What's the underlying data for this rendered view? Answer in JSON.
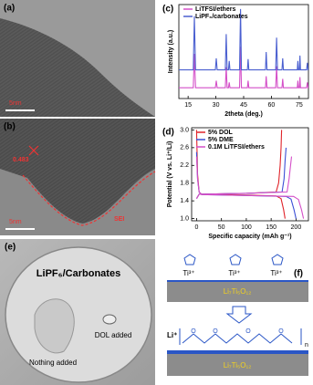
{
  "chart_data": [
    {
      "type": "line",
      "label": "(c)",
      "ylabel": "Intensity (a.u.)",
      "xlabel": "2theta (deg.)",
      "x": [
        10,
        17.8,
        18.4,
        19.0,
        29.7,
        30.2,
        30.7,
        35.1,
        35.6,
        36.1,
        36.8,
        37.2,
        37.6,
        42.8,
        43.3,
        43.8,
        47.0,
        47.4,
        47.8,
        56.8,
        57.2,
        57.6,
        62.3,
        62.8,
        63.3,
        65.7,
        66.1,
        66.5,
        74.0,
        74.3,
        74.6,
        75.1,
        75.4,
        75.7,
        79.0,
        79.4,
        79.8,
        80
      ],
      "series": [
        {
          "name": "LiTFSI/ethers",
          "color": "#d44fc8",
          "values": [
            0.12,
            0.12,
            0.5,
            0.12,
            0.12,
            0.2,
            0.12,
            0.12,
            0.35,
            0.12,
            0.12,
            0.18,
            0.12,
            0.12,
            0.58,
            0.12,
            0.12,
            0.2,
            0.12,
            0.12,
            0.25,
            0.12,
            0.12,
            0.36,
            0.12,
            0.12,
            0.22,
            0.12,
            0.12,
            0.2,
            0.12,
            0.12,
            0.24,
            0.12,
            0.12,
            0.18,
            0.12,
            0.12
          ]
        },
        {
          "name": "LiPF₆/carbonates",
          "color": "#4a5fd0",
          "values": [
            0.32,
            0.32,
            0.92,
            0.32,
            0.32,
            0.45,
            0.32,
            0.32,
            0.72,
            0.32,
            0.32,
            0.42,
            0.32,
            0.32,
            1.0,
            0.32,
            0.32,
            0.44,
            0.32,
            0.32,
            0.52,
            0.32,
            0.32,
            0.68,
            0.32,
            0.32,
            0.45,
            0.32,
            0.32,
            0.42,
            0.32,
            0.32,
            0.48,
            0.32,
            0.32,
            0.4,
            0.32,
            0.32
          ]
        }
      ],
      "xlim": [
        10,
        80
      ],
      "ylim": [
        0,
        1.05
      ],
      "xticks": [
        15,
        30,
        45,
        60,
        75
      ],
      "grid": false,
      "legend": "top-left"
    },
    {
      "type": "line",
      "label": "(d)",
      "ylabel": "Potential (V vs. Li⁺/Li)",
      "xlabel": "Specific capacity (mAh g⁻¹)",
      "series": [
        {
          "name": "5% DOL",
          "color": "#e0242a",
          "x": [
            0,
            2,
            5,
            10,
            100,
            160,
            170,
            175,
            178,
            null,
            0,
            5,
            100,
            160,
            165,
            168,
            170,
            171
          ],
          "values": [
            3.0,
            2.0,
            1.6,
            1.55,
            1.53,
            1.51,
            1.45,
            1.2,
            1.0,
            null,
            1.45,
            1.55,
            1.57,
            1.6,
            1.8,
            2.2,
            2.6,
            3.0
          ]
        },
        {
          "name": "5% DME",
          "color": "#3b4fd6",
          "x": [
            0,
            2,
            5,
            10,
            100,
            180,
            190,
            196,
            200,
            null,
            0,
            5,
            100,
            172,
            176,
            178,
            180
          ],
          "values": [
            2.5,
            1.9,
            1.6,
            1.54,
            1.52,
            1.5,
            1.44,
            1.2,
            1.0,
            null,
            1.45,
            1.55,
            1.57,
            1.6,
            1.9,
            2.3,
            2.6
          ]
        },
        {
          "name": "0.1M LiTFSI/ethers",
          "color": "#d44fc8",
          "x": [
            0,
            2,
            5,
            10,
            100,
            195,
            205,
            211,
            215,
            null,
            0,
            5,
            100,
            182,
            186,
            189,
            191
          ],
          "values": [
            2.4,
            1.9,
            1.6,
            1.54,
            1.52,
            1.5,
            1.43,
            1.2,
            1.0,
            null,
            1.45,
            1.55,
            1.57,
            1.6,
            1.9,
            2.2,
            2.4
          ]
        }
      ],
      "xlim": [
        -10,
        225
      ],
      "ylim": [
        0.95,
        3.05
      ],
      "xticks": [
        0,
        50,
        100,
        150,
        200
      ],
      "yticks": [
        {
          "value": 1,
          "label": "1.0"
        },
        1.4,
        1.8,
        2.2,
        2.6,
        {
          "value": 3,
          "label": "3.0"
        }
      ],
      "grid": false,
      "legend": "top-left"
    }
  ],
  "panels": {
    "a": {
      "label": "(a)",
      "scale_bar": "5nm"
    },
    "b": {
      "label": "(b)",
      "spacing": "0.483",
      "interface": "SEI",
      "scale_bar": "5nm"
    },
    "e": {
      "label": "(e)",
      "title": "LiPF₆/Carbonates",
      "left_note": "Nothing added",
      "right_note": "DOL added"
    },
    "f": {
      "label": "(f)",
      "ions": [
        "Ti³⁺",
        "Ti³⁺",
        "Ti³⁺"
      ],
      "substrate_top": "Li₇Ti₅O₁₂",
      "cation": "Li⁺",
      "atoms": [
        "O",
        "O",
        "O",
        "O"
      ],
      "repeat": "n",
      "substrate_bottom": "Li₇Ti₅O₁₂"
    }
  }
}
